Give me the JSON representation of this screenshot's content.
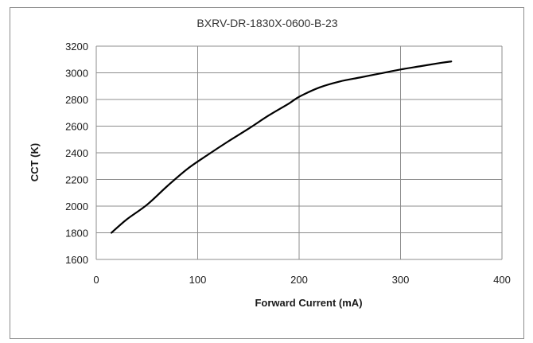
{
  "chart_data": {
    "type": "line",
    "title": "BXRV-DR-1830X-0600-B-23",
    "xlabel": "Forward Current (mA)",
    "ylabel": "CCT (K)",
    "xlim": [
      0,
      400
    ],
    "ylim": [
      1600,
      3200
    ],
    "xticks": [
      0,
      100,
      200,
      300,
      400
    ],
    "yticks": [
      1600,
      1800,
      2000,
      2200,
      2400,
      2600,
      2800,
      3000,
      3200
    ],
    "grid": true,
    "legend": "none",
    "line_color": "#000000",
    "series": [
      {
        "x": [
          15,
          30,
          50,
          70,
          90,
          110,
          130,
          150,
          170,
          190,
          200,
          220,
          240,
          260,
          280,
          300,
          320,
          340,
          350
        ],
        "y": [
          1800,
          1900,
          2010,
          2150,
          2280,
          2385,
          2485,
          2580,
          2680,
          2770,
          2820,
          2890,
          2935,
          2965,
          2995,
          3025,
          3050,
          3075,
          3085
        ]
      }
    ]
  }
}
